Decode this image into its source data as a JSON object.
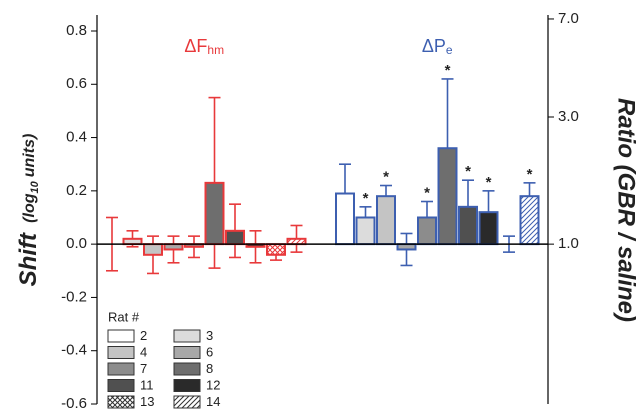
{
  "chart_data": {
    "type": "bar",
    "categories": [
      "2",
      "3",
      "4",
      "6",
      "7",
      "8",
      "11",
      "12",
      "13",
      "14"
    ],
    "category_fills": [
      "#ffffff",
      "#dcdcdc",
      "#c4c4c4",
      "#a8a8a8",
      "#8c8c8c",
      "#6e6e6e",
      "#505050",
      "#2a2a2a",
      "#ffffff",
      "#ffffff"
    ],
    "category_patterns": [
      null,
      null,
      null,
      null,
      null,
      null,
      null,
      null,
      "crosshatch",
      "hatch"
    ],
    "legend_title": "Rat #",
    "legend_position": "lower left",
    "series": [
      {
        "name": "ΔF",
        "name_sub": "hm",
        "color": "#e8393b",
        "values": [
          0.0,
          0.02,
          -0.04,
          -0.02,
          -0.01,
          0.23,
          0.05,
          -0.01,
          -0.04,
          0.02
        ],
        "errors": [
          0.1,
          0.03,
          0.07,
          0.05,
          0.04,
          0.32,
          0.1,
          0.06,
          0.02,
          0.05
        ],
        "annotations": [
          null,
          null,
          null,
          null,
          null,
          null,
          null,
          null,
          null,
          null
        ]
      },
      {
        "name": "ΔP",
        "name_sub": "e",
        "color": "#3d5fb0",
        "values": [
          0.19,
          0.1,
          0.18,
          -0.02,
          0.1,
          0.36,
          0.14,
          0.12,
          0.0,
          0.18
        ],
        "errors": [
          0.11,
          0.04,
          0.04,
          0.06,
          0.06,
          0.26,
          0.1,
          0.08,
          0.03,
          0.05
        ],
        "annotations": [
          null,
          "*",
          "*",
          null,
          "*",
          "*",
          "*",
          "*",
          null,
          "*"
        ]
      }
    ],
    "y_label": {
      "main": "Shift",
      "unit": "(log",
      "sub": "10",
      "unit_end": "units)"
    },
    "y2_label": "Ratio (GBR / saline)",
    "ylim": [
      -0.6,
      0.86
    ],
    "yticks": [
      -0.6,
      -0.4,
      -0.2,
      {
        "value": 0,
        "label": "0.0"
      },
      0.2,
      0.4,
      0.6,
      0.8
    ],
    "y2lim": [
      0.2512,
      7.244
    ],
    "y2scale": "log",
    "y2ticks": [
      {
        "value": 1,
        "label": "1.0"
      },
      {
        "value": 3,
        "label": "3.0"
      },
      {
        "value": 7,
        "label": "7.0"
      }
    ]
  }
}
